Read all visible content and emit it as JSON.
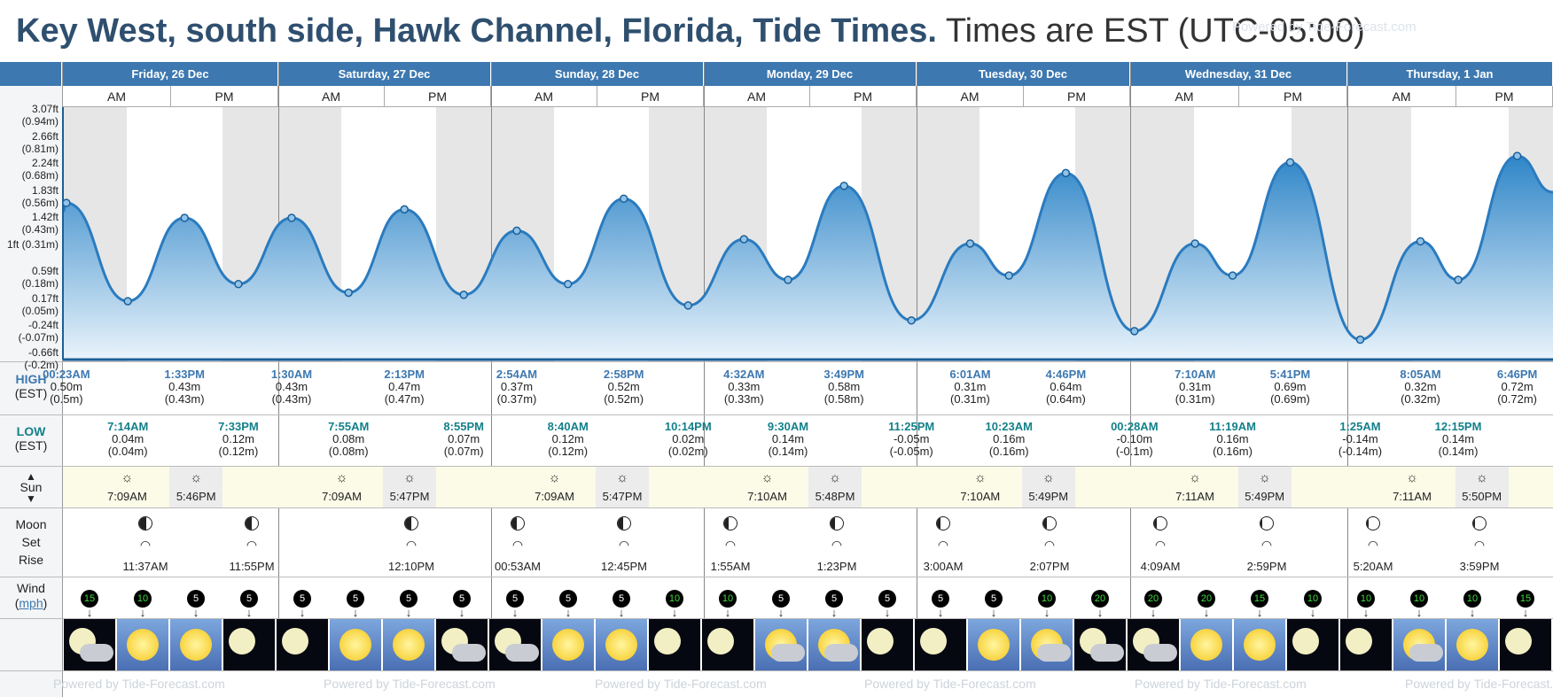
{
  "title": {
    "location": "Key West, south side, Hawk Channel, Florida, Tide Times.",
    "timezone": "Times are EST (UTC-05:00)"
  },
  "watermark": "Powered by Tide-Forecast.com",
  "days": [
    {
      "label": "Friday, 26 Dec"
    },
    {
      "label": "Saturday, 27 Dec"
    },
    {
      "label": "Sunday, 28 Dec"
    },
    {
      "label": "Monday, 29 Dec"
    },
    {
      "label": "Tuesday, 30 Dec"
    },
    {
      "label": "Wednesday, 31 Dec"
    },
    {
      "label": "Thursday, 1 Jan"
    }
  ],
  "ampm": {
    "am": "AM",
    "pm": "PM"
  },
  "y_axis": [
    "-0.66ft (-0.2m)",
    "-0.24ft (-0.07m)",
    "0.17ft (0.05m)",
    "0.59ft (0.18m)",
    "1ft (0.31m)",
    "1.42ft (0.43m)",
    "1.83ft (0.56m)",
    "2.24ft (0.68m)",
    "2.66ft (0.81m)",
    "3.07ft (0.94m)"
  ],
  "row_labels": {
    "high": "HIGH",
    "low": "LOW",
    "est": "(EST)",
    "sun": "Sun",
    "moon": "Moon",
    "set": "Set",
    "rise": "Rise",
    "wind": "Wind",
    "mph": "mph"
  },
  "highs": [
    {
      "t": "00:23AM",
      "m": "0.50m",
      "p": "(0.5m)"
    },
    {
      "t": "1:33PM",
      "m": "0.43m",
      "p": "(0.43m)"
    },
    {
      "t": "1:30AM",
      "m": "0.43m",
      "p": "(0.43m)"
    },
    {
      "t": "2:13PM",
      "m": "0.47m",
      "p": "(0.47m)"
    },
    {
      "t": "2:54AM",
      "m": "0.37m",
      "p": "(0.37m)"
    },
    {
      "t": "2:58PM",
      "m": "0.52m",
      "p": "(0.52m)"
    },
    {
      "t": "4:32AM",
      "m": "0.33m",
      "p": "(0.33m)"
    },
    {
      "t": "3:49PM",
      "m": "0.58m",
      "p": "(0.58m)"
    },
    {
      "t": "6:01AM",
      "m": "0.31m",
      "p": "(0.31m)"
    },
    {
      "t": "4:46PM",
      "m": "0.64m",
      "p": "(0.64m)"
    },
    {
      "t": "7:10AM",
      "m": "0.31m",
      "p": "(0.31m)"
    },
    {
      "t": "5:41PM",
      "m": "0.69m",
      "p": "(0.69m)"
    },
    {
      "t": "8:05AM",
      "m": "0.32m",
      "p": "(0.32m)"
    },
    {
      "t": "6:46PM",
      "m": "0.72m",
      "p": "(0.72m)"
    }
  ],
  "lows": [
    {
      "t": "7:14AM",
      "m": "0.04m",
      "p": "(0.04m)"
    },
    {
      "t": "7:33PM",
      "m": "0.12m",
      "p": "(0.12m)"
    },
    {
      "t": "7:55AM",
      "m": "0.08m",
      "p": "(0.08m)"
    },
    {
      "t": "8:55PM",
      "m": "0.07m",
      "p": "(0.07m)"
    },
    {
      "t": "8:40AM",
      "m": "0.12m",
      "p": "(0.12m)"
    },
    {
      "t": "10:14PM",
      "m": "0.02m",
      "p": "(0.02m)"
    },
    {
      "t": "9:30AM",
      "m": "0.14m",
      "p": "(0.14m)"
    },
    {
      "t": "11:25PM",
      "m": "-0.05m",
      "p": "(-0.05m)"
    },
    {
      "t": "10:23AM",
      "m": "0.16m",
      "p": "(0.16m)"
    },
    {
      "t": "00:28AM",
      "m": "-0.10m",
      "p": "(-0.1m)"
    },
    {
      "t": "11:19AM",
      "m": "0.16m",
      "p": "(0.16m)"
    },
    {
      "t": "1:25AM",
      "m": "-0.14m",
      "p": "(-0.14m)"
    },
    {
      "t": "12:15PM",
      "m": "0.14m",
      "p": "(0.14m)"
    }
  ],
  "sun": [
    {
      "rise": "7:09AM",
      "set": "5:46PM"
    },
    {
      "rise": "7:09AM",
      "set": "5:47PM"
    },
    {
      "rise": "7:09AM",
      "set": "5:47PM"
    },
    {
      "rise": "7:10AM",
      "set": "5:48PM"
    },
    {
      "rise": "7:10AM",
      "set": "5:49PM"
    },
    {
      "rise": "7:11AM",
      "set": "5:49PM"
    },
    {
      "rise": "7:11AM",
      "set": "5:50PM"
    }
  ],
  "moon": [
    "11:37AM",
    "11:55PM",
    "12:10PM",
    "00:53AM",
    "12:45PM",
    "1:55AM",
    "1:23PM",
    "3:00AM",
    "2:07PM",
    "4:09AM",
    "2:59PM",
    "5:20AM",
    "3:59PM"
  ],
  "wind": [
    "15",
    "10",
    "5",
    "5",
    "5",
    "5",
    "5",
    "5",
    "5",
    "5",
    "5",
    "10",
    "10",
    "5",
    "5",
    "5",
    "5",
    "5",
    "10",
    "20",
    "20",
    "20",
    "15",
    "10",
    "10",
    "10",
    "10",
    "15"
  ],
  "wind_green": [
    "15",
    "10",
    "20",
    "15"
  ],
  "tide_chart": {
    "type": "line",
    "unit": "m",
    "ylim": [
      -0.2,
      0.94
    ],
    "points": [
      {
        "day": 0,
        "h": 0.38,
        "v": 0.5
      },
      {
        "day": 0,
        "h": 7.23,
        "v": 0.04
      },
      {
        "day": 0,
        "h": 13.55,
        "v": 0.43
      },
      {
        "day": 0,
        "h": 19.55,
        "v": 0.12
      },
      {
        "day": 1,
        "h": 1.5,
        "v": 0.43
      },
      {
        "day": 1,
        "h": 7.92,
        "v": 0.08
      },
      {
        "day": 1,
        "h": 14.22,
        "v": 0.47
      },
      {
        "day": 1,
        "h": 20.92,
        "v": 0.07
      },
      {
        "day": 2,
        "h": 2.9,
        "v": 0.37
      },
      {
        "day": 2,
        "h": 8.67,
        "v": 0.12
      },
      {
        "day": 2,
        "h": 14.97,
        "v": 0.52
      },
      {
        "day": 2,
        "h": 22.23,
        "v": 0.02
      },
      {
        "day": 3,
        "h": 4.53,
        "v": 0.33
      },
      {
        "day": 3,
        "h": 9.5,
        "v": 0.14
      },
      {
        "day": 3,
        "h": 15.82,
        "v": 0.58
      },
      {
        "day": 3,
        "h": 23.42,
        "v": -0.05
      },
      {
        "day": 4,
        "h": 6.02,
        "v": 0.31
      },
      {
        "day": 4,
        "h": 10.38,
        "v": 0.16
      },
      {
        "day": 4,
        "h": 16.77,
        "v": 0.64
      },
      {
        "day": 5,
        "h": 0.47,
        "v": -0.1
      },
      {
        "day": 5,
        "h": 7.17,
        "v": 0.31
      },
      {
        "day": 5,
        "h": 11.32,
        "v": 0.16
      },
      {
        "day": 5,
        "h": 17.68,
        "v": 0.69
      },
      {
        "day": 6,
        "h": 1.42,
        "v": -0.14
      },
      {
        "day": 6,
        "h": 8.08,
        "v": 0.32
      },
      {
        "day": 6,
        "h": 12.25,
        "v": 0.14
      },
      {
        "day": 6,
        "h": 18.77,
        "v": 0.72
      }
    ]
  }
}
